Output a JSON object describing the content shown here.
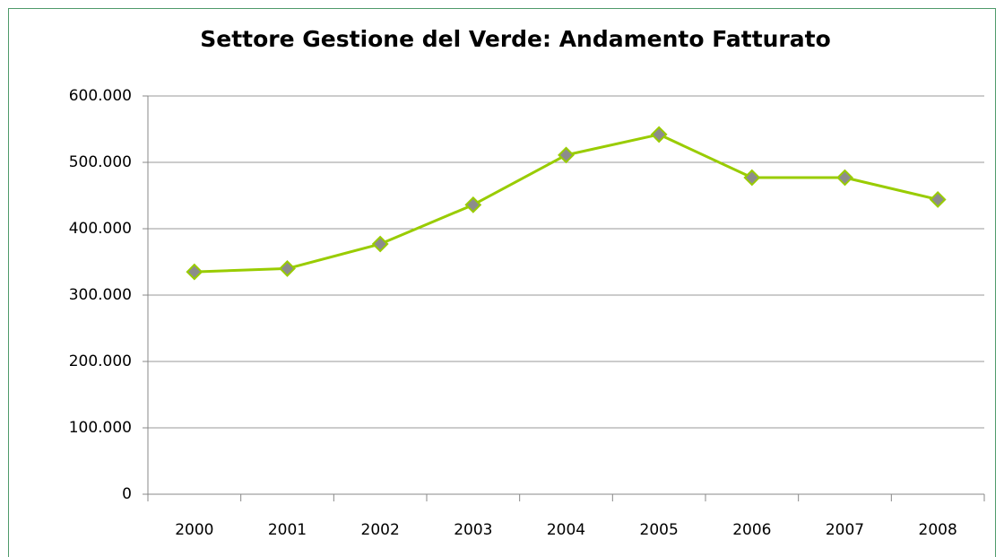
{
  "chart_data": {
    "type": "line",
    "title": "Settore Gestione del Verde: Andamento Fatturato",
    "categories": [
      "2000",
      "2001",
      "2002",
      "2003",
      "2004",
      "2005",
      "2006",
      "2007",
      "2008"
    ],
    "series": [
      {
        "name": "Fatturato",
        "color": "#99cc00",
        "values": [
          335000,
          340000,
          377000,
          436000,
          511000,
          542000,
          477000,
          477000,
          444000
        ]
      }
    ],
    "ylim": [
      0,
      600000
    ],
    "yticks": [
      0,
      {
        "value": 100000,
        "label": "100.000"
      },
      {
        "value": 200000,
        "label": "200.000"
      },
      {
        "value": 300000,
        "label": "300.000"
      },
      {
        "value": 400000,
        "label": "400.000"
      },
      {
        "value": 500000,
        "label": "500.000"
      },
      {
        "value": 600000,
        "label": "600.000"
      }
    ],
    "grid": true,
    "marker_color": "#8c8c8c"
  }
}
